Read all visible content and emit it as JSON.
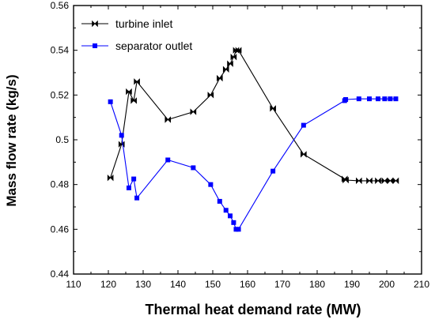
{
  "chart_data": {
    "type": "line",
    "xlabel": "Thermal heat demand rate (MW)",
    "ylabel": "Mass flow rate (kg/s)",
    "xlim": [
      110,
      210
    ],
    "ylim": [
      0.44,
      0.56
    ],
    "xticks": [
      110,
      120,
      130,
      140,
      150,
      160,
      170,
      180,
      190,
      200,
      210
    ],
    "yticks": [
      0.44,
      0.46,
      0.48,
      0.5,
      0.52,
      0.54,
      0.56
    ],
    "ytick_labels": [
      "0.44",
      "0.46",
      "0.48",
      "0.5",
      "0.52",
      "0.54",
      "0.56"
    ],
    "grid": false,
    "legend_position": "top-left",
    "series": [
      {
        "name": "turbine inlet",
        "color": "#000000",
        "marker": "bowtie",
        "x": [
          120.6,
          123.8,
          125.9,
          127.3,
          128.2,
          137.1,
          144.4,
          149.4,
          152.0,
          153.8,
          155.0,
          156.0,
          156.7,
          157.4,
          167.3,
          176.1,
          187.9,
          188.2,
          192.0,
          195.0,
          197.5,
          199.4,
          201.0,
          202.6
        ],
        "y": [
          0.483,
          0.498,
          0.5215,
          0.5175,
          0.526,
          0.509,
          0.5125,
          0.52,
          0.5275,
          0.5315,
          0.534,
          0.537,
          0.54,
          0.54,
          0.514,
          0.4935,
          0.4825,
          0.482,
          0.4817,
          0.4817,
          0.4817,
          0.4817,
          0.4817,
          0.4817
        ]
      },
      {
        "name": "separator outlet",
        "color": "#0000ff",
        "marker": "square",
        "x": [
          120.6,
          123.8,
          125.9,
          127.3,
          128.2,
          137.1,
          144.4,
          149.4,
          152.0,
          153.8,
          155.0,
          156.0,
          156.7,
          157.4,
          167.3,
          176.1,
          187.9,
          188.2,
          192.0,
          195.0,
          197.5,
          199.4,
          201.0,
          202.6
        ],
        "y": [
          0.517,
          0.502,
          0.4785,
          0.4825,
          0.474,
          0.491,
          0.4875,
          0.48,
          0.4725,
          0.4685,
          0.466,
          0.463,
          0.46,
          0.46,
          0.486,
          0.5065,
          0.5175,
          0.518,
          0.5183,
          0.5183,
          0.5183,
          0.5183,
          0.5183,
          0.5183
        ]
      }
    ]
  }
}
